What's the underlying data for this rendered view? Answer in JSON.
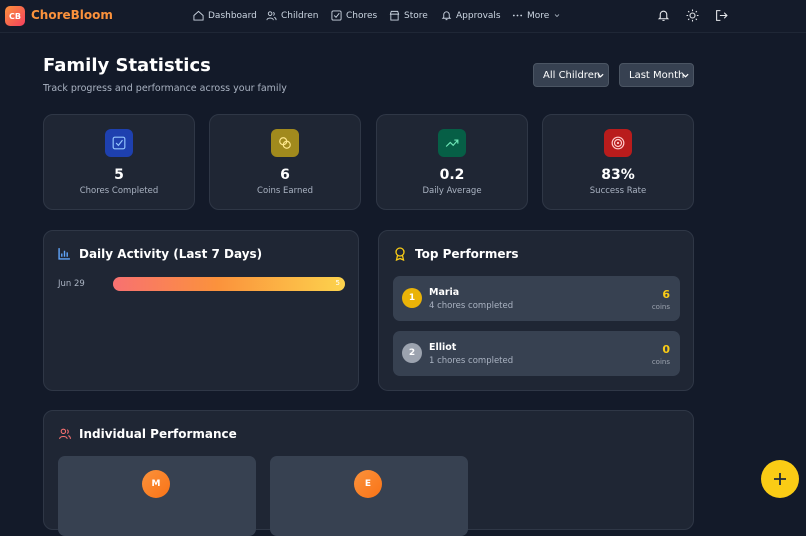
{
  "app": {
    "logo": "CB",
    "name": "ChoreBloom"
  },
  "nav": [
    "Dashboard",
    "Children",
    "Chores",
    "Store",
    "Approvals",
    "More"
  ],
  "page": {
    "title": "Family Statistics",
    "subtitle": "Track progress and performance across your family"
  },
  "filters": [
    "All Children",
    "Last Month"
  ],
  "stats": [
    {
      "value": "5",
      "label": "Chores Completed"
    },
    {
      "value": "6",
      "label": "Coins Earned"
    },
    {
      "value": "0.2",
      "label": "Daily Average"
    },
    {
      "value": "83%",
      "label": "Success Rate"
    }
  ],
  "daily_activity": {
    "title": "Daily Activity (Last 7 Days)",
    "days": [
      {
        "date": "Jun 29",
        "count": 5
      }
    ]
  },
  "top_performers": {
    "title": "Top Performers",
    "people": [
      {
        "rank": "1",
        "name": "Maria",
        "detail": "4 chores completed",
        "coins": "6",
        "unit": "coins"
      },
      {
        "rank": "2",
        "name": "Elliot",
        "detail": "1 chores completed",
        "coins": "0",
        "unit": "coins"
      }
    ]
  },
  "individual": {
    "title": "Individual Performance",
    "people": [
      "M",
      "E"
    ]
  }
}
